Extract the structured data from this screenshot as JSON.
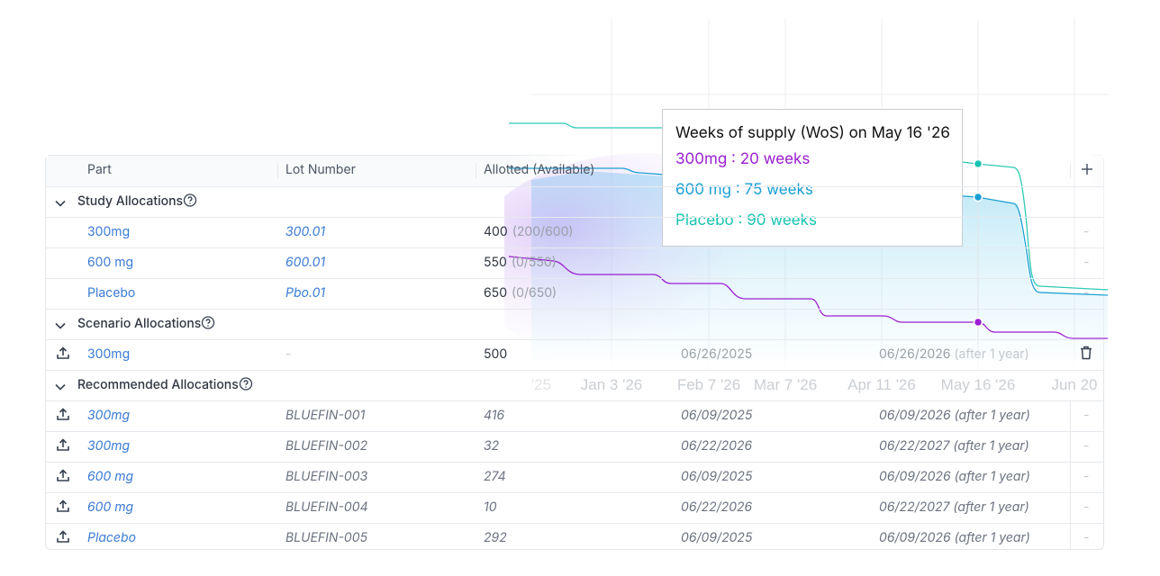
{
  "table": {
    "columns": [
      "Part",
      "Lot Number",
      "Allotted (Available)"
    ],
    "sections": [
      {
        "title": "Study Allocations",
        "rows": [
          {
            "part": "300mg",
            "lot": "300.01",
            "allotted": 400,
            "available": "(200/600)",
            "end": "-"
          },
          {
            "part": "600 mg",
            "lot": "600.01",
            "allotted": 550,
            "available": "(0/550)",
            "end": "-"
          },
          {
            "part": "Placebo",
            "lot": "Pbo.01",
            "allotted": 650,
            "available": "(0/650)",
            "end": "-"
          }
        ]
      },
      {
        "title": "Scenario Allocations",
        "rows": [
          {
            "part": "300mg",
            "lot": "-",
            "allotted": 500,
            "start": "06/26/2025",
            "expiry": "06/26/2026",
            "note": "(after 1 year)"
          }
        ]
      },
      {
        "title": "Recommended Allocations",
        "rows": [
          {
            "part": "300mg",
            "lot": "BLUEFIN-001",
            "allotted": 416,
            "start": "06/09/2025",
            "expiry": "06/09/2026 (after 1 year)",
            "end": "-"
          },
          {
            "part": "300mg",
            "lot": "BLUEFIN-002",
            "allotted": 32,
            "start": "06/22/2026",
            "expiry": "06/22/2027 (after 1 year)",
            "end": "-"
          },
          {
            "part": "600 mg",
            "lot": "BLUEFIN-003",
            "allotted": 274,
            "start": "06/09/2025",
            "expiry": "06/09/2026 (after 1 year)",
            "end": "-"
          },
          {
            "part": "600 mg",
            "lot": "BLUEFIN-004",
            "allotted": 10,
            "start": "06/22/2026",
            "expiry": "06/22/2027 (after 1 year)",
            "end": "-"
          },
          {
            "part": "Placebo",
            "lot": "BLUEFIN-005",
            "allotted": 292,
            "start": "06/09/2025",
            "expiry": "06/09/2026 (after 1 year)",
            "end": "-"
          }
        ]
      }
    ]
  },
  "chart": {
    "x_labels": [
      "'25",
      "Jan 3 '26",
      "Feb 7 '26",
      "Mar 7 '26",
      "Apr 11 '26",
      "May 16 '26",
      "Jun 20"
    ],
    "tooltip": {
      "title": "Weeks of supply (WoS) on May 16 '26",
      "items": [
        {
          "text": "300mg : 20 weeks",
          "color": "#9b1fd1"
        },
        {
          "text": "600 mg : 75 weeks",
          "color": "#1a9fd6"
        },
        {
          "text": "Placebo : 90 weeks",
          "color": "#17c3b0"
        }
      ]
    }
  }
}
